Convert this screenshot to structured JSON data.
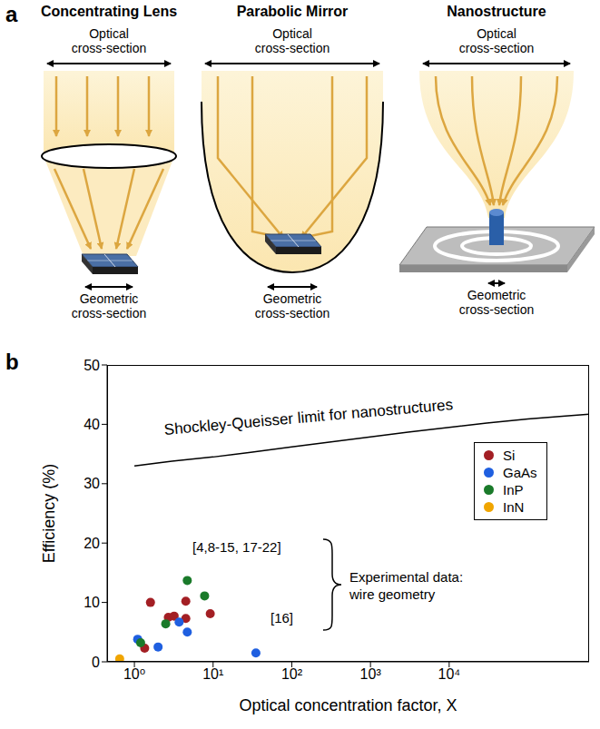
{
  "diagram": {
    "panel_label": "a",
    "columns": [
      {
        "title": "Concentrating Lens",
        "top": "Optical cross-section",
        "bottom": "Geometric cross-section"
      },
      {
        "title": "Parabolic Mirror",
        "top": "Optical cross-section",
        "bottom": "Geometric cross-section"
      },
      {
        "title": "Nanostructure",
        "top": "Optical cross-section",
        "bottom": "Geometric cross-section"
      }
    ]
  },
  "chart_panel_label": "b",
  "chart_data": {
    "type": "scatter",
    "x_label": "Optical concentration factor, X",
    "y_label": "Efficiency (%)",
    "log": "x",
    "xlim": [
      0.45,
      600000
    ],
    "xticks": [
      {
        "value": 1,
        "label": "10⁰"
      },
      {
        "value": 10,
        "label": "10¹"
      },
      {
        "value": 100,
        "label": "10²"
      },
      {
        "value": 1000,
        "label": "10³"
      },
      {
        "value": 10000,
        "label": "10⁴"
      }
    ],
    "ylim": [
      0,
      50
    ],
    "yticks": [
      0,
      10,
      20,
      30,
      40,
      50
    ],
    "grid": false,
    "legend": "right",
    "curve": {
      "label": "Shockley-Queisser limit for nanostructures",
      "color": "#000000",
      "line_style": "solid",
      "x": [
        1,
        3,
        10,
        30,
        100,
        300,
        1000,
        3000,
        10000,
        30000,
        100000,
        300000,
        600000
      ],
      "values": [
        33,
        33.8,
        34.5,
        35.3,
        36.2,
        37,
        37.9,
        38.7,
        39.5,
        40.2,
        40.9,
        41.4,
        41.7
      ]
    },
    "series": [
      {
        "name": "Si",
        "color": "#a31f24",
        "marker": "circle",
        "x": [
          1.35,
          1.6,
          2.7,
          3.2,
          4.5,
          4.5,
          9.2
        ],
        "values": [
          2.3,
          10,
          7.5,
          7.7,
          10.2,
          7.3,
          8.1
        ]
      },
      {
        "name": "GaAs",
        "color": "#1f5fe0",
        "marker": "circle",
        "x": [
          1.1,
          2.0,
          3.7,
          4.7,
          35
        ],
        "values": [
          3.8,
          2.5,
          6.7,
          5.0,
          1.5
        ]
      },
      {
        "name": "InP",
        "color": "#1a7a2a",
        "marker": "circle",
        "x": [
          1.2,
          2.5,
          4.7,
          7.8
        ],
        "values": [
          3.2,
          6.4,
          13.7,
          11.1
        ]
      },
      {
        "name": "InN",
        "color": "#f0a500",
        "marker": "circle",
        "x": [
          0.65
        ],
        "values": [
          0.5
        ]
      }
    ],
    "annotations": [
      "[4,8-15, 17-22]",
      "Experimental data: wire geometry",
      "[16]"
    ]
  }
}
